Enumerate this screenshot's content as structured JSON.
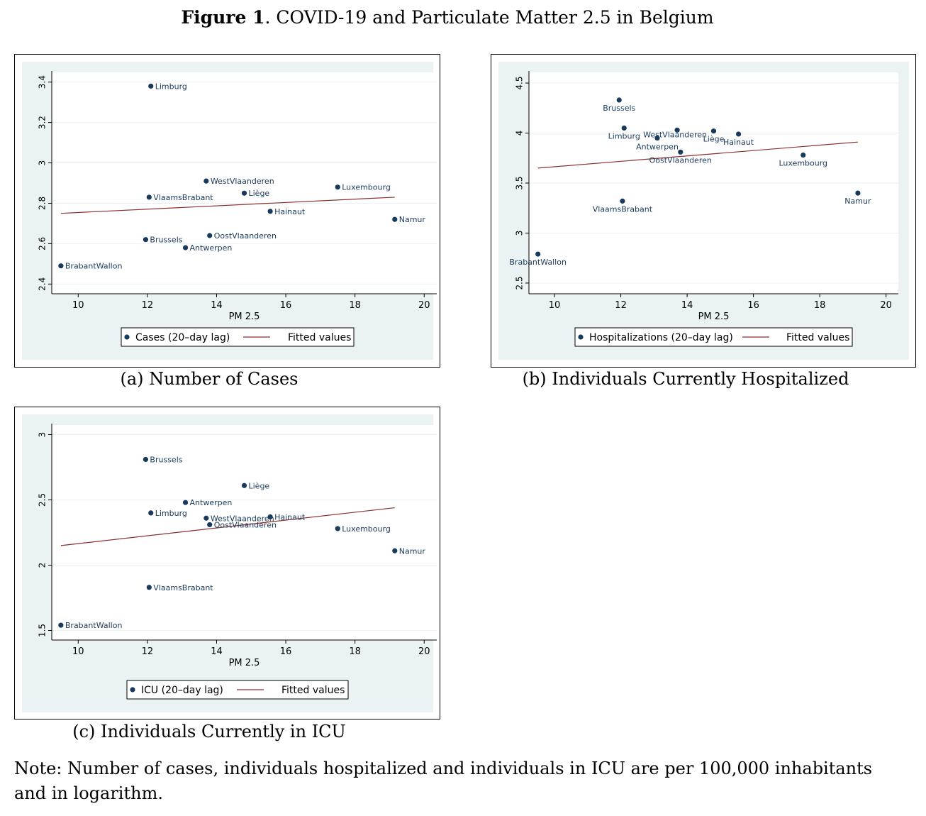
{
  "figure": {
    "label": "Figure 1",
    "title": ". COVID-19 and Particulate Matter 2.5 in Belgium"
  },
  "note": "Note: Number of cases, individuals hospitalized and individuals in ICU are per 100,000 inhabitants and in logarithm.",
  "colors": {
    "marker": "#1a3a5c",
    "fit": "#8b2e2e",
    "plot_bg": "#eaf2f3",
    "grid": "#ffffff"
  },
  "chart_data": [
    {
      "id": "a",
      "type": "scatter",
      "caption": "(a) Number of Cases",
      "xlabel": "PM 2.5",
      "ylabel": "",
      "xlim": [
        9.4,
        20.2
      ],
      "ylim": [
        2.38,
        3.42
      ],
      "xticks": [
        "10",
        "12",
        "14",
        "16",
        "18",
        "20"
      ],
      "yticks": [
        "2.4",
        "2.6",
        "2.8",
        "3",
        "3.2",
        "3.4"
      ],
      "grid": true,
      "legend_position": "bottom",
      "legend": {
        "scatter": "Cases (20–day lag)",
        "fit": "Fitted values"
      },
      "points": [
        {
          "name": "Limburg",
          "x": 12.1,
          "y": 3.38
        },
        {
          "name": "WestVlaanderen",
          "x": 13.7,
          "y": 2.91
        },
        {
          "name": "Liège",
          "x": 14.8,
          "y": 2.85
        },
        {
          "name": "Luxembourg",
          "x": 17.5,
          "y": 2.88
        },
        {
          "name": "VlaamsBrabant",
          "x": 12.05,
          "y": 2.83
        },
        {
          "name": "Hainaut",
          "x": 15.55,
          "y": 2.76
        },
        {
          "name": "Namur",
          "x": 19.15,
          "y": 2.72
        },
        {
          "name": "Brussels",
          "x": 11.95,
          "y": 2.62
        },
        {
          "name": "OostVlaanderen",
          "x": 13.8,
          "y": 2.64
        },
        {
          "name": "Antwerpen",
          "x": 13.1,
          "y": 2.58
        },
        {
          "name": "BrabantWallon",
          "x": 9.5,
          "y": 2.49
        }
      ],
      "fit": {
        "x": [
          9.5,
          19.15
        ],
        "y": [
          2.75,
          2.83
        ]
      }
    },
    {
      "id": "b",
      "type": "scatter",
      "caption": "(b) Individuals Currently Hospitalized",
      "xlabel": "PM 2.5",
      "ylabel": "",
      "xlim": [
        9.4,
        20.2
      ],
      "ylim": [
        2.45,
        4.55
      ],
      "xticks": [
        "10",
        "12",
        "14",
        "16",
        "18",
        "20"
      ],
      "yticks": [
        "2.5",
        "3",
        "3.5",
        "4",
        "4.5"
      ],
      "grid": true,
      "legend_position": "bottom",
      "legend": {
        "scatter": "Hospitalizations (20–day lag)",
        "fit": "Fitted values"
      },
      "points": [
        {
          "name": "Brussels",
          "x": 11.95,
          "y": 4.33
        },
        {
          "name": "Limburg",
          "x": 12.1,
          "y": 4.05
        },
        {
          "name": "WestVlaanderen",
          "x": 13.7,
          "y": 4.03
        },
        {
          "name": "Liège",
          "x": 14.8,
          "y": 4.02
        },
        {
          "name": "Hainaut",
          "x": 15.55,
          "y": 3.99
        },
        {
          "name": "Antwerpen",
          "x": 13.1,
          "y": 3.95
        },
        {
          "name": "OostVlaanderen",
          "x": 13.8,
          "y": 3.81
        },
        {
          "name": "Luxembourg",
          "x": 17.5,
          "y": 3.78
        },
        {
          "name": "Namur",
          "x": 19.15,
          "y": 3.4
        },
        {
          "name": "VlaamsBrabant",
          "x": 12.05,
          "y": 3.32
        },
        {
          "name": "BrabantWallon",
          "x": 9.5,
          "y": 2.79
        }
      ],
      "fit": {
        "x": [
          9.5,
          19.15
        ],
        "y": [
          3.65,
          3.91
        ]
      }
    },
    {
      "id": "c",
      "type": "scatter",
      "caption": "(c) Individuals Currently in ICU",
      "xlabel": "PM 2.5",
      "ylabel": "",
      "xlim": [
        9.4,
        20.2
      ],
      "ylim": [
        1.47,
        3.03
      ],
      "xticks": [
        "10",
        "12",
        "14",
        "16",
        "18",
        "20"
      ],
      "yticks": [
        "1.5",
        "2",
        "2.5",
        "3"
      ],
      "grid": true,
      "legend_position": "bottom",
      "legend": {
        "scatter": "ICU (20–day lag)",
        "fit": "Fitted values"
      },
      "points": [
        {
          "name": "Brussels",
          "x": 11.95,
          "y": 2.81
        },
        {
          "name": "Liège",
          "x": 14.8,
          "y": 2.61
        },
        {
          "name": "Antwerpen",
          "x": 13.1,
          "y": 2.48
        },
        {
          "name": "Limburg",
          "x": 12.1,
          "y": 2.4
        },
        {
          "name": "WestVlaanderen",
          "x": 13.7,
          "y": 2.36
        },
        {
          "name": "Hainaut",
          "x": 15.55,
          "y": 2.37
        },
        {
          "name": "OostVlaanderen",
          "x": 13.8,
          "y": 2.31
        },
        {
          "name": "Luxembourg",
          "x": 17.5,
          "y": 2.28
        },
        {
          "name": "Namur",
          "x": 19.15,
          "y": 2.11
        },
        {
          "name": "VlaamsBrabant",
          "x": 12.05,
          "y": 1.83
        },
        {
          "name": "BrabantWallon",
          "x": 9.5,
          "y": 1.54
        }
      ],
      "fit": {
        "x": [
          9.5,
          19.15
        ],
        "y": [
          2.15,
          2.44
        ]
      }
    }
  ]
}
